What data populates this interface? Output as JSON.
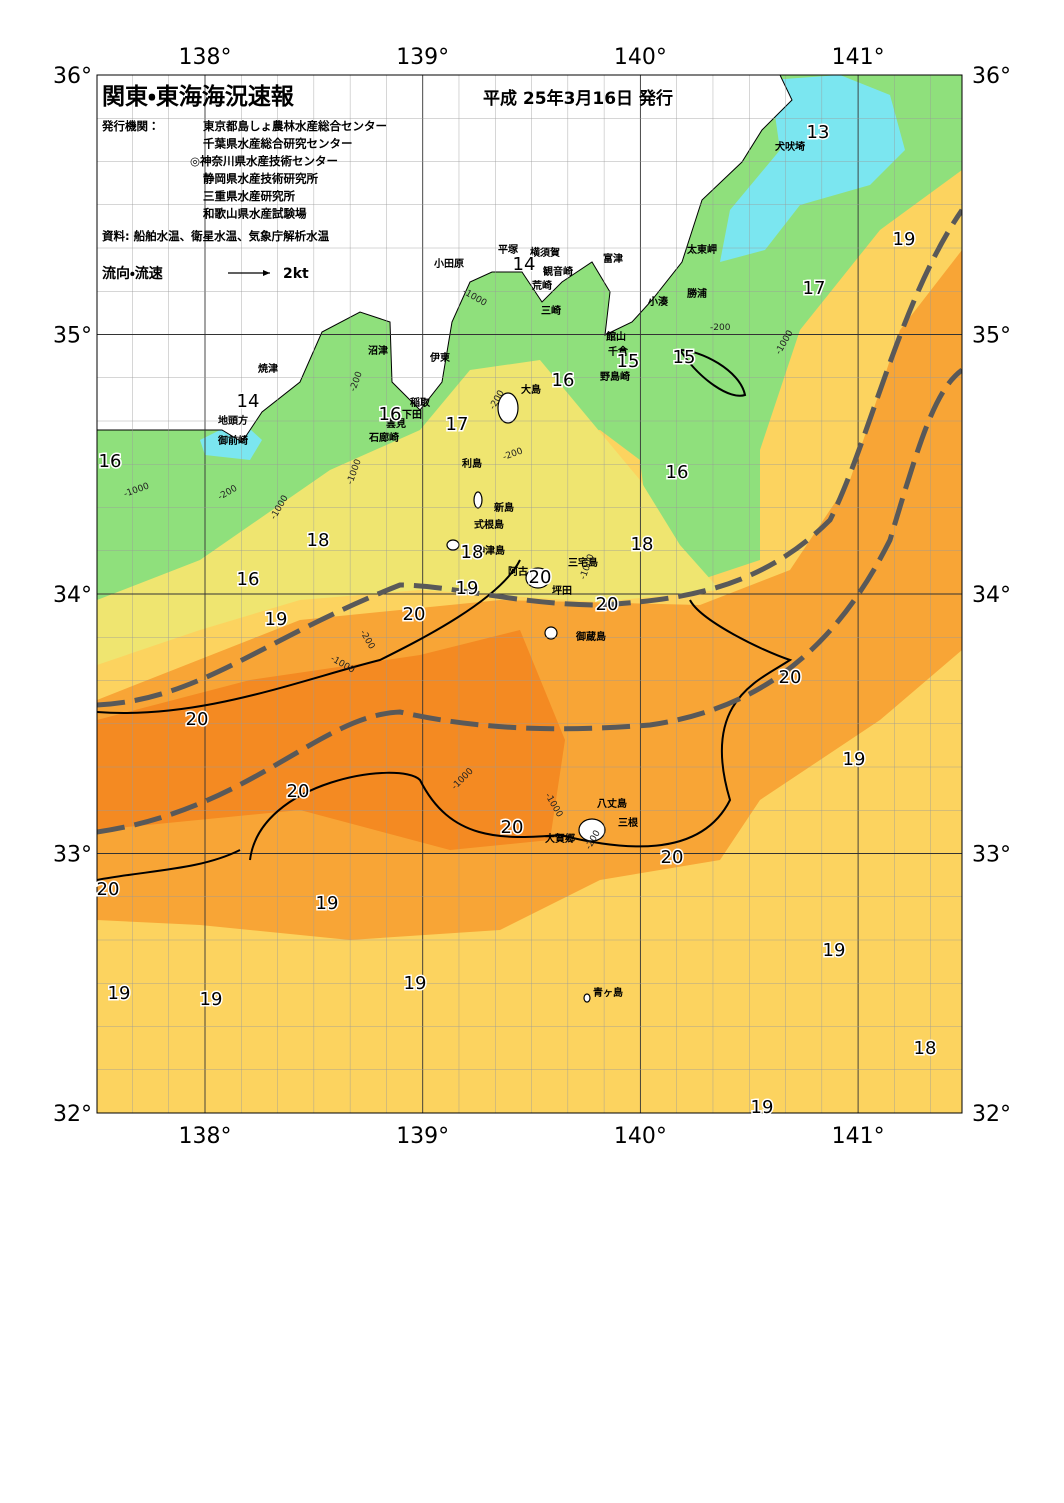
{
  "header": {
    "title": "関東・東海海況速報",
    "date": "平成 25年3月16日 発行"
  },
  "issuers": {
    "label": "発行機関：",
    "items": [
      "東京都島しょ農林水産総合センター",
      "千葉県水産総合研究センター",
      "◎神奈川県水産技術センター",
      "静岡県水産技術研究所",
      "三重県水産研究所",
      "和歌山県水産試験場"
    ]
  },
  "source": "資料: 船舶水温、衛星水温、気象庁解析水温",
  "legend": {
    "label": "流向・流速",
    "scale": "2kt"
  },
  "lon_labels": [
    "138°",
    "139°",
    "140°",
    "141°"
  ],
  "lat_labels": [
    "36°",
    "35°",
    "34°",
    "33°",
    "32°"
  ],
  "places": [
    "犬吠埼",
    "太東岬",
    "勝浦",
    "小湊",
    "富津",
    "横須賀",
    "観音崎",
    "平塚",
    "小田原",
    "荒崎",
    "三崎",
    "館山",
    "千倉",
    "野島崎",
    "沼津",
    "伊東",
    "大島",
    "焼津",
    "稲取",
    "下田",
    "雲見",
    "石廊崎",
    "地頭方",
    "御前崎",
    "利島",
    "新島",
    "式根島",
    "神津島",
    "三宅島",
    "阿古",
    "坪田",
    "御蔵島",
    "八丈島",
    "三根",
    "大賀郷",
    "青ヶ島"
  ],
  "isotherm_labels": [
    13,
    14,
    15,
    15,
    16,
    14,
    16,
    17,
    16,
    16,
    18,
    18,
    18,
    16,
    19,
    20,
    19,
    20,
    20,
    20,
    20,
    19,
    20,
    20,
    20,
    20,
    19,
    19,
    19,
    19,
    19,
    18,
    19,
    17,
    19
  ],
  "depth_labels": [
    "-1000",
    "-200",
    "-200",
    "-1000",
    "-200",
    "-1000",
    "-200",
    "-200",
    "-1000",
    "-1000",
    "-1000",
    "-200",
    "-1000",
    "-1000",
    "-1000",
    "-200"
  ]
}
